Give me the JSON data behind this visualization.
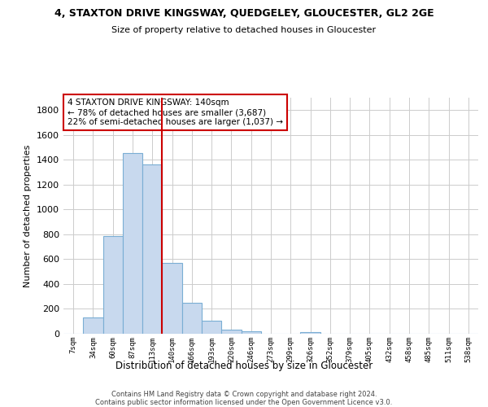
{
  "title": "4, STAXTON DRIVE KINGSWAY, QUEDGELEY, GLOUCESTER, GL2 2GE",
  "subtitle": "Size of property relative to detached houses in Gloucester",
  "xlabel": "Distribution of detached houses by size in Gloucester",
  "ylabel": "Number of detached properties",
  "bar_labels": [
    "7sqm",
    "34sqm",
    "60sqm",
    "87sqm",
    "113sqm",
    "140sqm",
    "166sqm",
    "193sqm",
    "220sqm",
    "246sqm",
    "273sqm",
    "299sqm",
    "326sqm",
    "352sqm",
    "379sqm",
    "405sqm",
    "432sqm",
    "458sqm",
    "485sqm",
    "511sqm",
    "538sqm"
  ],
  "bar_values": [
    0,
    130,
    785,
    1455,
    1360,
    570,
    250,
    105,
    30,
    20,
    0,
    0,
    15,
    0,
    0,
    0,
    0,
    0,
    0,
    0,
    0
  ],
  "bar_color": "#c8d9ee",
  "bar_edge_color": "#7aaed4",
  "highlight_bar_idx": 5,
  "highlight_line_color": "#cc0000",
  "ylim": [
    0,
    1900
  ],
  "yticks": [
    0,
    200,
    400,
    600,
    800,
    1000,
    1200,
    1400,
    1600,
    1800
  ],
  "annotation_title": "4 STAXTON DRIVE KINGSWAY: 140sqm",
  "annotation_line1": "← 78% of detached houses are smaller (3,687)",
  "annotation_line2": "22% of semi-detached houses are larger (1,037) →",
  "annotation_box_color": "#ffffff",
  "annotation_box_edge": "#cc0000",
  "footer_line1": "Contains HM Land Registry data © Crown copyright and database right 2024.",
  "footer_line2": "Contains public sector information licensed under the Open Government Licence v3.0.",
  "background_color": "#ffffff",
  "grid_color": "#cccccc"
}
